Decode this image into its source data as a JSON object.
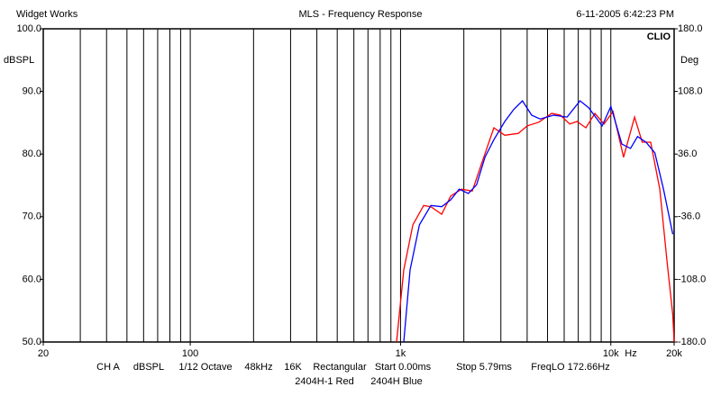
{
  "chart_data": {
    "type": "line",
    "header_left": "Widget Works",
    "title": "MLS - Frequency Response",
    "header_right": "6-11-2005 6:42:23 PM",
    "brand": "CLIO",
    "ylabel": "dBSPL",
    "y2label": "Deg",
    "x_unit": "Hz",
    "xscale": "log",
    "xlim": [
      20,
      20000
    ],
    "xticks": [
      20,
      100,
      {
        "value": 1000,
        "label": "1k"
      },
      {
        "value": 10000,
        "label": "10k"
      },
      {
        "value": 20000,
        "label": "20k"
      }
    ],
    "ylim": [
      50,
      100
    ],
    "yticks": [
      {
        "value": 50,
        "label": "50.0"
      },
      {
        "value": 60,
        "label": "60.0"
      },
      {
        "value": 70,
        "label": "70.0"
      },
      {
        "value": 80,
        "label": "80.0"
      },
      {
        "value": 90,
        "label": "90.0"
      },
      {
        "value": 100,
        "label": "100.0"
      }
    ],
    "y2lim": [
      -180,
      180
    ],
    "y2ticks": [
      {
        "value": -180,
        "label": "-180.0"
      },
      {
        "value": -108,
        "label": "-108.0"
      },
      {
        "value": -36,
        "label": "-36.0"
      },
      {
        "value": 36,
        "label": "36.0"
      },
      {
        "value": 108,
        "label": "108.0"
      },
      {
        "value": 180,
        "label": "180.0"
      }
    ],
    "grid": true,
    "series": [
      {
        "name": "2404H-1 Red",
        "color": "#ff0000",
        "x": [
          957,
          1036,
          1144,
          1288,
          1394,
          1570,
          1732,
          1950,
          2193,
          2443,
          2780,
          3130,
          3630,
          4000,
          4550,
          5230,
          5760,
          6370,
          6900,
          7610,
          8400,
          9270,
          10240,
          11500,
          12970,
          14100,
          15480,
          17100,
          18500,
          19700,
          20000
        ],
        "values": [
          50,
          61.5,
          68.7,
          71.8,
          71.6,
          70.4,
          73.3,
          74.4,
          74.1,
          78.7,
          84.2,
          83.0,
          83.3,
          84.5,
          85.1,
          86.5,
          86.2,
          84.8,
          85.2,
          84.2,
          86.5,
          84.8,
          86.8,
          79.5,
          85.9,
          81.9,
          81.9,
          74.4,
          62.9,
          54.3,
          50
        ]
      },
      {
        "name": "2404H Blue",
        "color": "#0000ff",
        "x": [
          1036,
          1110,
          1230,
          1394,
          1570,
          1732,
          1900,
          2100,
          2300,
          2520,
          2780,
          3130,
          3450,
          3800,
          4200,
          4610,
          5340,
          6190,
          7140,
          7850,
          9090,
          10000,
          11280,
          12400,
          13400,
          14700,
          16200,
          17800,
          19700
        ],
        "values": [
          50,
          61.5,
          68.7,
          71.8,
          71.6,
          72.7,
          74.4,
          73.7,
          75.1,
          79.5,
          82.3,
          85.2,
          87.1,
          88.5,
          86.2,
          85.6,
          86.2,
          85.9,
          88.5,
          87.4,
          84.5,
          87.6,
          81.6,
          80.9,
          82.8,
          81.9,
          80.2,
          74.4,
          67.2
        ]
      }
    ],
    "footer": [
      "CH A",
      "dBSPL",
      "1/12 Octave",
      "48kHz",
      "16K",
      "Rectangular",
      "Start 0.00ms",
      "Stop 5.79ms",
      "FreqLO 172.66Hz"
    ]
  }
}
